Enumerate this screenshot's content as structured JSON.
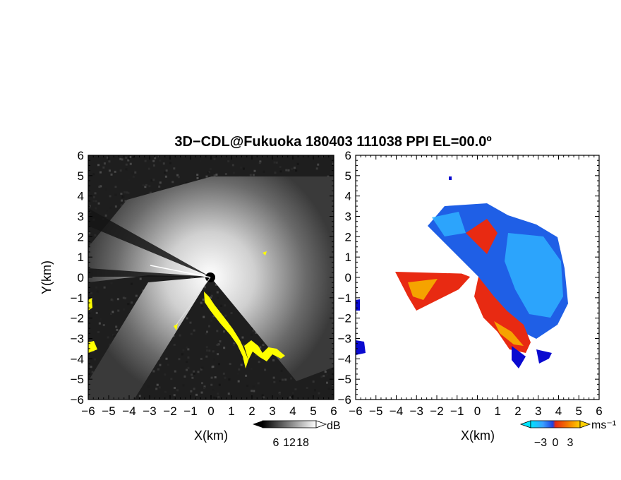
{
  "chart_data": {
    "type": "heatmap",
    "title": "3D−CDL@Fukuoka 180403 111038 PPI EL=00.0º",
    "panels": [
      {
        "id": "reflectivity",
        "xlabel": "X(km)",
        "ylabel": "Y(km)",
        "xlim": [
          -6,
          6
        ],
        "ylim": [
          -6,
          6
        ],
        "x_ticks": [
          "−6",
          "−5",
          "−4",
          "−3",
          "−2",
          "−1",
          "0",
          "1",
          "2",
          "3",
          "4",
          "5",
          "6"
        ],
        "y_ticks": [
          "6",
          "5",
          "4",
          "3",
          "2",
          "1",
          "0",
          "−1",
          "−2",
          "−3",
          "−4",
          "−5",
          "−6"
        ],
        "colormap": "grayscale",
        "colorbar": {
          "unit": "dB",
          "ticks": [
            "6",
            "12",
            "18"
          ],
          "range": [
            0,
            24
          ]
        }
      },
      {
        "id": "doppler_velocity",
        "xlabel": "X(km)",
        "xlim": [
          -6,
          6
        ],
        "ylim": [
          -6,
          6
        ],
        "x_ticks": [
          "−6",
          "−5",
          "−4",
          "−3",
          "−2",
          "−1",
          "0",
          "1",
          "2",
          "3",
          "4",
          "5",
          "6"
        ],
        "y_ticks": [
          "6",
          "5",
          "4",
          "3",
          "2",
          "1",
          "0",
          "−1",
          "−2",
          "−3",
          "−4",
          "−5",
          "−6"
        ],
        "colormap": "cyan-blue-red-orange-yellow",
        "colorbar": {
          "unit": "ms⁻¹",
          "ticks": [
            "−3",
            "0",
            "3"
          ],
          "range": [
            -5,
            5
          ]
        }
      }
    ],
    "colors": {
      "highlight_yellow": "#ffff00",
      "cyan": "#00e5ff",
      "blue": "#1f5fe6",
      "dark_blue": "#0a0ad0",
      "red": "#e82a12",
      "orange": "#f5a300",
      "background": "#ffffff"
    }
  }
}
